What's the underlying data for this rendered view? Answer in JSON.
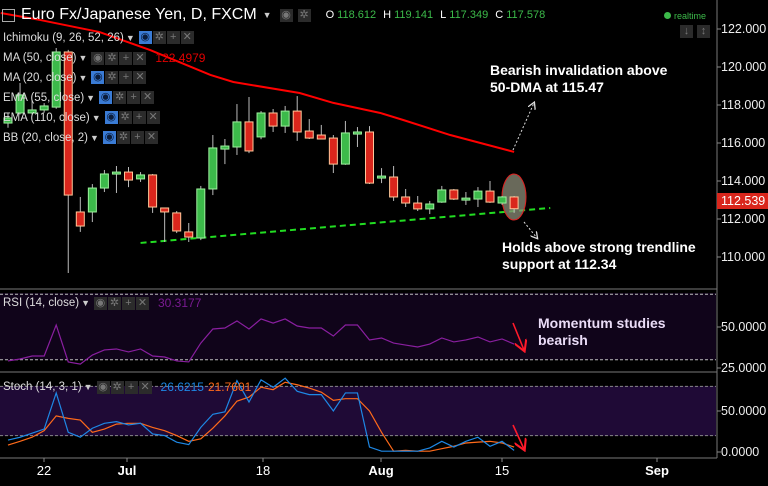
{
  "header": {
    "title": "Euro Fx/Japanese Yen, D, FXCM",
    "ohlc": {
      "o_label": "O",
      "o": "118.612",
      "h_label": "H",
      "h": "119.141",
      "l_label": "L",
      "l": "117.349",
      "c_label": "C",
      "c": "117.578"
    },
    "status": "realtime"
  },
  "indicators": [
    {
      "label": "Ichimoku (9, 26, 52, 26)",
      "visible": true,
      "value": ""
    },
    {
      "label": "MA (50, close)",
      "visible": false,
      "value": "122.4979"
    },
    {
      "label": "MA (20, close)",
      "visible": true,
      "value": ""
    },
    {
      "label": "EMA (55, close)",
      "visible": true,
      "value": ""
    },
    {
      "label": "EMA (110, close)",
      "visible": true,
      "value": ""
    },
    {
      "label": "BB (20, close, 2)",
      "visible": true,
      "value": ""
    }
  ],
  "rsi_legend": {
    "label": "RSI (14, close)",
    "value": "30.3177"
  },
  "stoch_legend": {
    "label": "Stoch (14, 3, 1)",
    "k_value": "26.6215",
    "d_value": "21.7601"
  },
  "annotations": {
    "bearish_1": "Bearish invalidation above",
    "bearish_2": "50-DMA at 115.47",
    "holds_1": "Holds above strong trendline",
    "holds_2": "support at 112.34",
    "momentum_1": "Momentum studies",
    "momentum_2": "bearish"
  },
  "colors": {
    "up": "#3cba4a",
    "down": "#d9261c",
    "ma50": "#ff0000",
    "trendline": "#22dd22",
    "rsi": "#8a1fa0",
    "stoch_k": "#1e88e5",
    "stoch_d": "#ff6a1a",
    "rsi_bg": "#10041a",
    "stoch_bg": "#1f0a36"
  },
  "chart_data": [
    {
      "type": "candlestick",
      "ylim": [
        109,
        123
      ],
      "y_ticks": [
        "122.000",
        "120.000",
        "118.000",
        "116.000",
        "114.000",
        "112.000",
        "110.000"
      ],
      "last_price": "112.539",
      "x_ticks": [
        "22",
        "Jul",
        "18",
        "Aug",
        "15",
        "Sep"
      ],
      "ohlc": [
        [
          117.05,
          117.6,
          116.8,
          117.32
        ],
        [
          117.58,
          119.16,
          117.5,
          118.53
        ],
        [
          117.58,
          118.26,
          117.5,
          117.74
        ],
        [
          117.74,
          118.1,
          117.6,
          117.95
        ],
        [
          117.89,
          121.0,
          117.8,
          120.79
        ],
        [
          120.79,
          120.9,
          109.16,
          113.26
        ],
        [
          112.37,
          113.16,
          111.32,
          111.63
        ],
        [
          112.37,
          113.84,
          111.84,
          113.63
        ],
        [
          113.63,
          114.58,
          113.42,
          114.37
        ],
        [
          114.37,
          114.79,
          113.37,
          114.47
        ],
        [
          114.47,
          114.74,
          113.68,
          114.05
        ],
        [
          114.11,
          114.47,
          113.95,
          114.32
        ],
        [
          114.32,
          114.37,
          112.32,
          112.63
        ],
        [
          112.58,
          112.6,
          110.79,
          112.37
        ],
        [
          112.32,
          112.42,
          111.26,
          111.37
        ],
        [
          111.32,
          111.79,
          110.79,
          111.05
        ],
        [
          111.0,
          113.74,
          110.89,
          113.58
        ],
        [
          113.58,
          116.42,
          113.26,
          115.74
        ],
        [
          115.68,
          116.21,
          114.89,
          115.84
        ],
        [
          115.79,
          118.05,
          115.37,
          117.11
        ],
        [
          117.11,
          118.42,
          115.47,
          115.58
        ],
        [
          116.32,
          117.68,
          116.2,
          117.58
        ],
        [
          117.58,
          117.79,
          116.58,
          116.89
        ],
        [
          116.89,
          117.95,
          116.53,
          117.68
        ],
        [
          117.68,
          118.47,
          116.11,
          116.58
        ],
        [
          116.63,
          117.26,
          116.21,
          116.26
        ],
        [
          116.42,
          116.95,
          116.2,
          116.21
        ],
        [
          116.26,
          116.42,
          114.42,
          114.89
        ],
        [
          114.89,
          117.16,
          114.85,
          116.53
        ],
        [
          116.47,
          116.84,
          115.79,
          116.58
        ],
        [
          116.58,
          116.89,
          113.84,
          113.89
        ],
        [
          114.16,
          114.68,
          113.89,
          114.26
        ],
        [
          114.21,
          114.79,
          112.95,
          113.16
        ],
        [
          113.16,
          113.58,
          112.63,
          112.84
        ],
        [
          112.84,
          113.21,
          112.42,
          112.53
        ],
        [
          112.53,
          112.95,
          112.26,
          112.79
        ],
        [
          112.89,
          113.74,
          112.85,
          113.53
        ],
        [
          113.53,
          113.58,
          113.0,
          113.05
        ],
        [
          113.1,
          113.42,
          112.74,
          113.1
        ],
        [
          113.05,
          113.68,
          112.63,
          113.47
        ],
        [
          113.47,
          114.0,
          112.85,
          112.89
        ],
        [
          112.84,
          113.21,
          112.74,
          113.16
        ],
        [
          113.16,
          113.21,
          112.32,
          112.54
        ]
      ],
      "ma50": [
        [
          -0.6,
          122.84
        ],
        [
          2.7,
          122.47
        ],
        [
          7.6,
          121.84
        ],
        [
          11.8,
          120.89
        ],
        [
          16.8,
          119.58
        ],
        [
          18.7,
          119.21
        ],
        [
          24.2,
          118.63
        ],
        [
          27,
          118.11
        ],
        [
          30.9,
          117.58
        ],
        [
          32.8,
          117.21
        ],
        [
          36.7,
          116.42
        ],
        [
          42,
          115.53
        ]
      ],
      "trendline": [
        [
          11,
          110.74
        ],
        [
          45,
          112.58
        ]
      ]
    },
    {
      "type": "line",
      "name": "RSI (14, close)",
      "ylim": [
        20,
        75
      ],
      "y_ticks": [
        "50.0000",
        "25.0000"
      ],
      "bands": [
        30,
        70
      ],
      "values": [
        29.3,
        30.5,
        32.3,
        32.3,
        51.2,
        28.7,
        27.4,
        32.9,
        36.0,
        36.6,
        34.8,
        36.6,
        32.3,
        31.7,
        29.3,
        28.7,
        40.2,
        48.8,
        49.4,
        53.7,
        48.8,
        54.9,
        52.4,
        54.9,
        50.6,
        49.4,
        49.4,
        44.5,
        51.2,
        51.2,
        42.1,
        43.3,
        40.2,
        39.0,
        37.8,
        39.6,
        43.3,
        40.9,
        42.1,
        43.9,
        40.9,
        42.7,
        39.6
      ]
    },
    {
      "type": "line",
      "name": "Stoch (14, 3, 1)",
      "ylim": [
        -4,
        100
      ],
      "y_ticks": [
        "50.0000",
        "0.0000"
      ],
      "bands": [
        20,
        80
      ],
      "k": [
        14.6,
        18,
        23,
        28,
        72,
        24,
        18,
        29,
        35,
        37,
        33,
        35,
        22,
        20,
        12,
        9,
        30,
        46,
        49,
        87,
        61,
        88,
        79,
        90,
        74,
        70,
        70,
        50,
        72,
        72,
        6,
        1,
        1,
        1,
        1,
        5,
        13,
        6,
        13,
        18,
        7,
        13,
        2
      ],
      "d": [
        8.5,
        13,
        18,
        26,
        44,
        41,
        39,
        24,
        28,
        34,
        35,
        35,
        30,
        26,
        20,
        13,
        16,
        29,
        44,
        62,
        67,
        79,
        76,
        85,
        82,
        78,
        73,
        63,
        65,
        65,
        50,
        24,
        1,
        2,
        1,
        1,
        4,
        7,
        11,
        12,
        13,
        11,
        6
      ]
    }
  ]
}
